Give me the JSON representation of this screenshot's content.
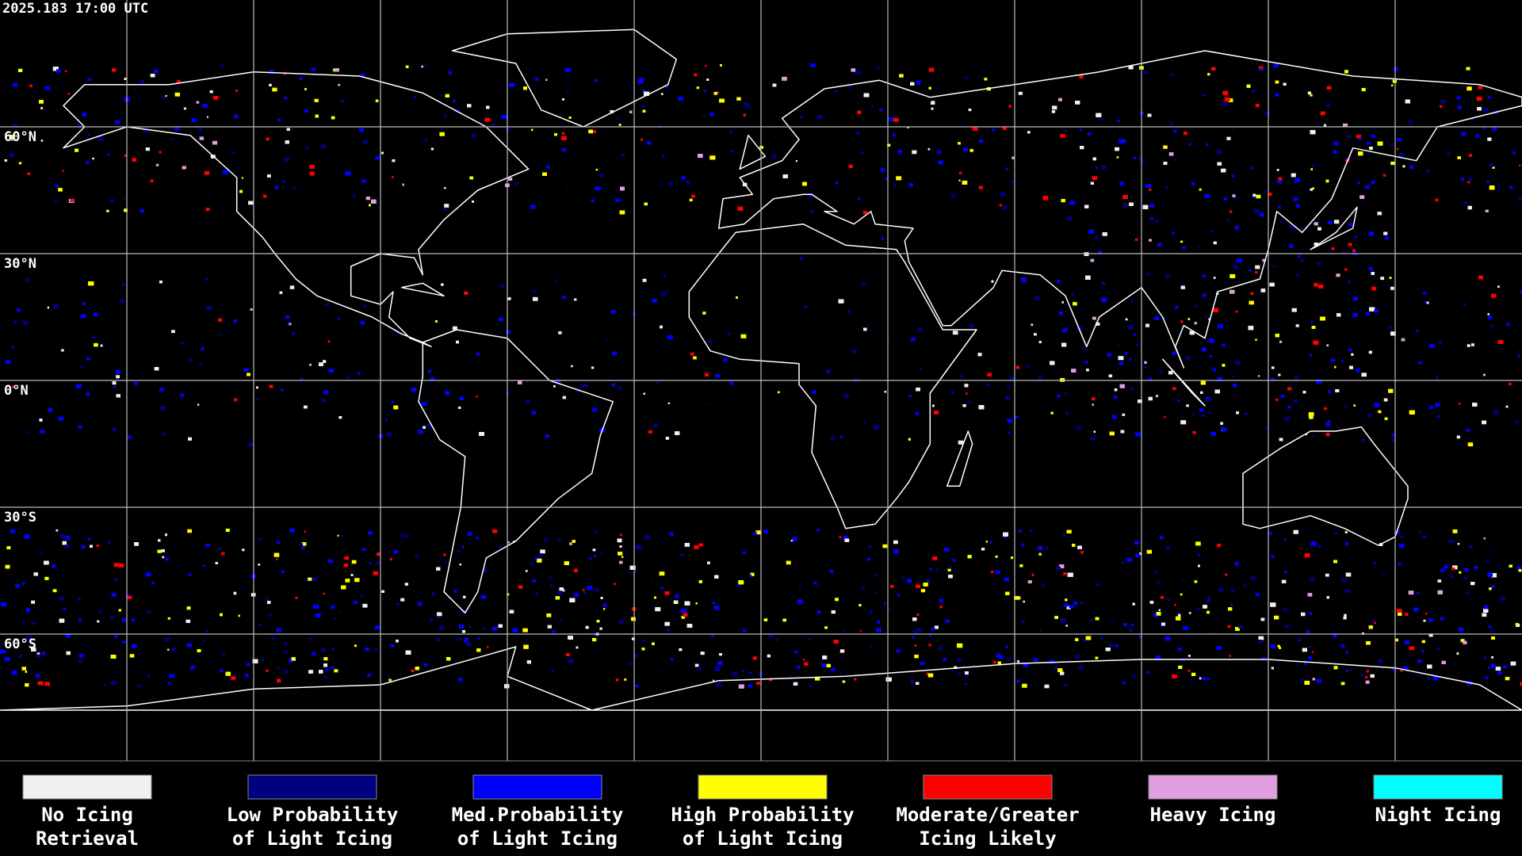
{
  "timestamp": "2025.183 17:00 UTC",
  "lat_labels": [
    "60°N",
    "30°N",
    "0°N",
    "30°S",
    "60°S"
  ],
  "legend": [
    {
      "lines": [
        "No Icing",
        "Retrieval"
      ],
      "color": "#f0f0f0"
    },
    {
      "lines": [
        "Low Probability",
        "of Light Icing"
      ],
      "color": "#000080"
    },
    {
      "lines": [
        "Med.Probability",
        "of Light Icing"
      ],
      "color": "#0000ff"
    },
    {
      "lines": [
        "High Probability",
        "of Light Icing"
      ],
      "color": "#ffff00"
    },
    {
      "lines": [
        "Moderate/Greater",
        "Icing Likely"
      ],
      "color": "#ff0000"
    },
    {
      "lines": [
        "Heavy Icing"
      ],
      "color": "#e0a0e0"
    },
    {
      "lines": [
        "Night Icing"
      ],
      "color": "#00ffff"
    }
  ]
}
